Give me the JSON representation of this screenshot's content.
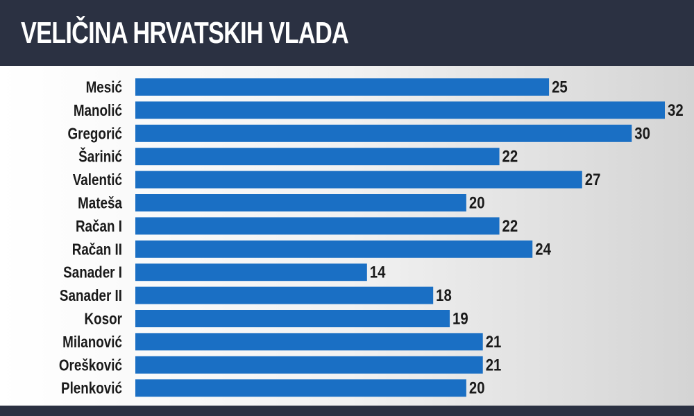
{
  "title": "VELIČINA HRVATSKIH VLADA",
  "colors": {
    "header": "#2b3142",
    "bar": "#1a6fc4",
    "text": "#1a1a1a",
    "title": "#ffffff"
  },
  "chart_data": {
    "type": "bar",
    "orientation": "horizontal",
    "title": "VELIČINA HRVATSKIH VLADA",
    "categories": [
      "Mesić",
      "Manolić",
      "Gregorić",
      "Šarinić",
      "Valentić",
      "Mateša",
      "Račan I",
      "Račan II",
      "Sanader I",
      "Sanader II",
      "Kosor",
      "Milanović",
      "Orešković",
      "Plenković"
    ],
    "values": [
      25,
      32,
      30,
      22,
      27,
      20,
      22,
      24,
      14,
      18,
      19,
      21,
      21,
      20
    ],
    "xlim": [
      0,
      32
    ],
    "grid": false,
    "legend": "none"
  }
}
